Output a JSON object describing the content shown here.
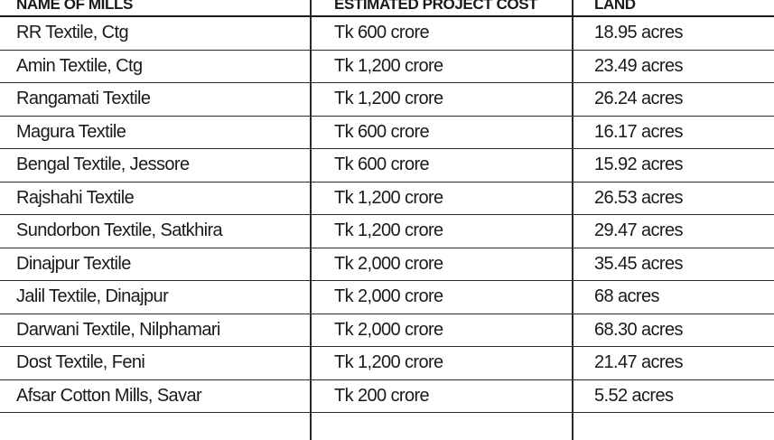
{
  "table": {
    "headers": {
      "name": "NAME OF MILLS",
      "cost": "ESTIMATED PROJECT COST",
      "land": "LAND"
    },
    "rows": [
      {
        "name": "RR Textile, Ctg",
        "cost": "Tk 600 crore",
        "land": "18.95 acres"
      },
      {
        "name": "Amin Textile, Ctg",
        "cost": "Tk 1,200 crore",
        "land": "23.49 acres"
      },
      {
        "name": "Rangamati Textile",
        "cost": "Tk 1,200 crore",
        "land": "26.24 acres"
      },
      {
        "name": "Magura Textile",
        "cost": "Tk 600 crore",
        "land": "16.17 acres"
      },
      {
        "name": "Bengal Textile, Jessore",
        "cost": "Tk 600 crore",
        "land": "15.92 acres"
      },
      {
        "name": "Rajshahi Textile",
        "cost": "Tk 1,200 crore",
        "land": "26.53 acres"
      },
      {
        "name": "Sundorbon Textile, Satkhira",
        "cost": "Tk 1,200 crore",
        "land": "29.47 acres"
      },
      {
        "name": "Dinajpur Textile",
        "cost": "Tk 2,000 crore",
        "land": "35.45 acres"
      },
      {
        "name": "Jalil Textile, Dinajpur",
        "cost": "Tk 2,000 crore",
        "land": "68 acres"
      },
      {
        "name": "Darwani Textile, Nilphamari",
        "cost": "Tk 2,000 crore",
        "land": "68.30 acres"
      },
      {
        "name": "Dost Textile, Feni",
        "cost": "Tk 1,200 crore",
        "land": "21.47 acres"
      },
      {
        "name": "Afsar Cotton Mills, Savar",
        "cost": "Tk 200 crore",
        "land": "5.52 acres"
      }
    ]
  }
}
